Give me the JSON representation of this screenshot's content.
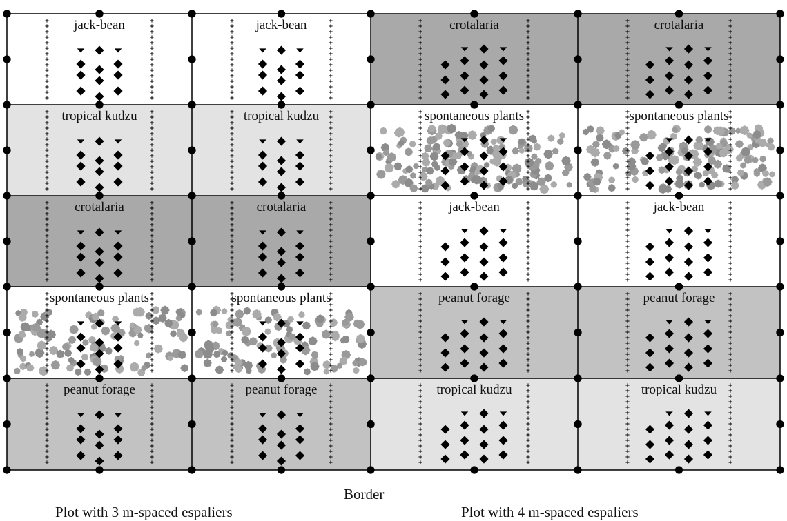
{
  "labels": {
    "jack_bean": "jack-bean",
    "crotalaria": "crotalaria",
    "tropical_kudzu": "tropical kudzu",
    "spontaneous_plants": "spontaneous plants",
    "peanut_forage": "peanut forage"
  },
  "grid": {
    "rows": 5,
    "cols": 4,
    "layout": [
      [
        "jack_bean",
        "jack_bean",
        "crotalaria",
        "crotalaria"
      ],
      [
        "tropical_kudzu",
        "tropical_kudzu",
        "spontaneous_plants",
        "spontaneous_plants"
      ],
      [
        "crotalaria",
        "crotalaria",
        "jack_bean",
        "jack_bean"
      ],
      [
        "spontaneous_plants",
        "spontaneous_plants",
        "peanut_forage",
        "peanut_forage"
      ],
      [
        "peanut_forage",
        "peanut_forage",
        "tropical_kudzu",
        "tropical_kudzu"
      ]
    ]
  },
  "colors": {
    "jack_bean": "#ffffff",
    "crotalaria": "#a9a9a9",
    "tropical_kudzu": "#e3e3e3",
    "spontaneous_plants": "#ffffff",
    "peanut_forage": "#c2c2c2",
    "weed_1": "#8c8c8c",
    "weed_2": "#ababab",
    "weed_3": "#9a9a9a",
    "lines": "#000000"
  },
  "captions": {
    "border": "Border",
    "plot_3m": "Plot with 3 m-spaced espaliers",
    "plot_4m": "Plot with 4 m-spaced espaliers"
  }
}
